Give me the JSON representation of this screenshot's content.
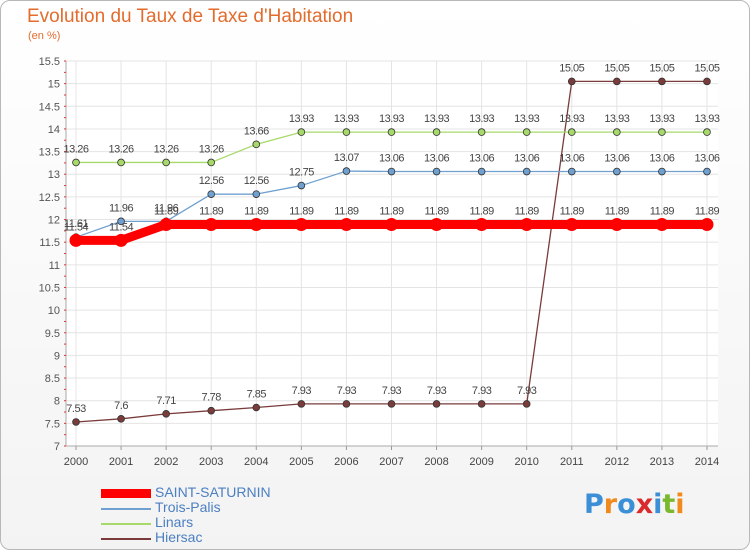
{
  "title": "Evolution du Taux de Taxe d'Habitation",
  "subtitle": "(en %)",
  "logo_text": "Proxiti",
  "chart_data": {
    "type": "line",
    "x": [
      "2000",
      "2001",
      "2002",
      "2003",
      "2004",
      "2005",
      "2006",
      "2007",
      "2008",
      "2009",
      "2010",
      "2011",
      "2012",
      "2013",
      "2014"
    ],
    "yticks": [
      "7",
      "7.5",
      "8",
      "8.5",
      "9",
      "9.5",
      "10",
      "10.5",
      "11",
      "11.5",
      "12",
      "12.5",
      "13",
      "13.5",
      "14",
      "14.5",
      "15",
      "15.5"
    ],
    "ylim": [
      7,
      15.5
    ],
    "grid": true,
    "legend_position": "bottom-left",
    "series": [
      {
        "name": "SAINT-SATURNIN",
        "color": "#ff0000",
        "emphasis": true,
        "values": [
          11.54,
          11.54,
          11.89,
          11.89,
          11.89,
          11.89,
          11.89,
          11.89,
          11.89,
          11.89,
          11.89,
          11.89,
          11.89,
          11.89,
          11.89
        ],
        "labels": [
          "11.54",
          "11.54",
          "11.89",
          "11.89",
          "11.89",
          "11.89",
          "11.89",
          "11.89",
          "11.89",
          "11.89",
          "11.89",
          "11.89",
          "11.89",
          "11.89",
          "11.89"
        ]
      },
      {
        "name": "Trois-Palis",
        "color": "#6fa0d0",
        "values": [
          11.61,
          11.96,
          11.96,
          12.56,
          12.56,
          12.75,
          13.07,
          13.06,
          13.06,
          13.06,
          13.06,
          13.06,
          13.06,
          13.06,
          13.06
        ],
        "labels": [
          "11.61",
          "11.96",
          "11.96",
          "12.56",
          "12.56",
          "12.75",
          "13.07",
          "13.06",
          "13.06",
          "13.06",
          "13.06",
          "13.06",
          "13.06",
          "13.06",
          "13.06"
        ]
      },
      {
        "name": "Linars",
        "color": "#a6d96a",
        "values": [
          13.26,
          13.26,
          13.26,
          13.26,
          13.66,
          13.93,
          13.93,
          13.93,
          13.93,
          13.93,
          13.93,
          13.93,
          13.93,
          13.93,
          13.93
        ],
        "labels": [
          "13.26",
          "13.26",
          "13.26",
          "13.26",
          "13.66",
          "13.93",
          "13.93",
          "13.93",
          "13.93",
          "13.93",
          "13.93",
          "13.93",
          "13.93",
          "13.93",
          "13.93"
        ]
      },
      {
        "name": "Hiersac",
        "color": "#7a3b3b",
        "values": [
          7.53,
          7.6,
          7.71,
          7.78,
          7.85,
          7.93,
          7.93,
          7.93,
          7.93,
          7.93,
          7.93,
          15.05,
          15.05,
          15.05,
          15.05
        ],
        "labels": [
          "7.53",
          "7.6",
          "7.71",
          "7.78",
          "7.85",
          "7.93",
          "7.93",
          "7.93",
          "7.93",
          "7.93",
          "7.93",
          "15.05",
          "15.05",
          "15.05",
          "15.05"
        ]
      }
    ]
  }
}
